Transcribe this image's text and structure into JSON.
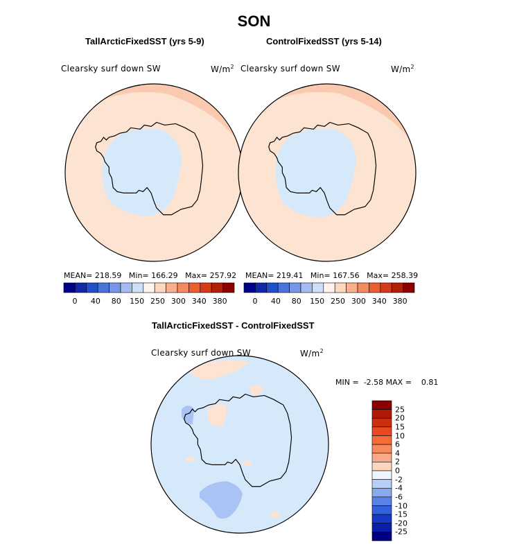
{
  "figure": {
    "season_title": "SON",
    "panels": [
      {
        "title": "TallArcticFixedSST (yrs 5-9)",
        "variable": "Clearsky surf down SW",
        "units": "W/m",
        "units_sup": "2",
        "mean_label": "MEAN= 218.59",
        "min_label": "Min= 166.29",
        "max_label": "Max= 257.92"
      },
      {
        "title": "ControlFixedSST (yrs 5-14)",
        "variable": "Clearsky surf down SW",
        "units": "W/m",
        "units_sup": "2",
        "mean_label": "MEAN= 219.41",
        "min_label": "Min= 167.56",
        "max_label": "Max= 258.39"
      }
    ],
    "diff_panel": {
      "title": "TallArcticFixedSST - ControlFixedSST",
      "variable": "Clearsky surf down SW",
      "units": "W/m",
      "units_sup": "2",
      "min_label": "MIN =",
      "min_value": "-2.58",
      "max_label": "MAX =",
      "max_value": "0.81"
    },
    "colorbar_horizontal": {
      "tick_labels": [
        "0",
        "40",
        "80",
        "150",
        "250",
        "300",
        "340",
        "380"
      ],
      "colors": [
        "#00008b",
        "#1028a8",
        "#2050c8",
        "#4a74dc",
        "#7896e8",
        "#a6bcf0",
        "#cfdff8",
        "#fff3ea",
        "#fdd8c0",
        "#f8b08e",
        "#f48a60",
        "#ea5e30",
        "#d43c18",
        "#b22008",
        "#8b0000"
      ]
    },
    "colorbar_vertical": {
      "tick_labels": [
        "25",
        "20",
        "15",
        "10",
        "6",
        "4",
        "2",
        "0",
        "-2",
        "-4",
        "-6",
        "-10",
        "-15",
        "-20",
        "-25"
      ],
      "colors": [
        "#8b0000",
        "#b01808",
        "#cc2e10",
        "#e84a20",
        "#f86a38",
        "#f88a60",
        "#f8aa88",
        "#fdd6c0",
        "#f0f4fc",
        "#b8cef4",
        "#8aaaee",
        "#5a82e4",
        "#3062dc",
        "#1838c8",
        "#0a1ea8",
        "#000080"
      ]
    },
    "colors": {
      "antarctic_blue": "#d6e9fb",
      "ocean_peach": "#fde3d1",
      "coast_salmon": "#f9c9b0",
      "diff_background": "#d6e9fb",
      "diff_negative": "#a9c3f5",
      "diff_positive": "#fde3d1"
    }
  }
}
